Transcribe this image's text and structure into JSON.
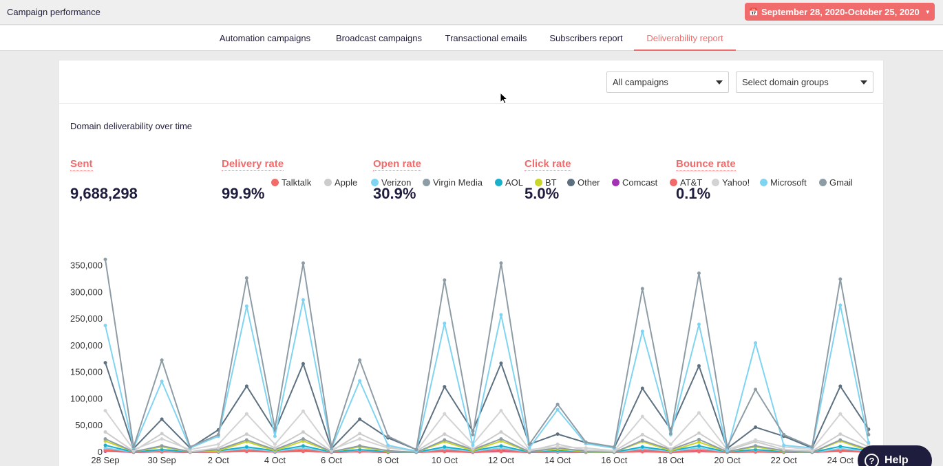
{
  "header": {
    "title": "Campaign performance",
    "date_range": "September 28, 2020-October 25, 2020",
    "calendar_icon": "calendar-icon",
    "dropdown_icon": "caret-down-icon",
    "accent_color": "#f06b6b"
  },
  "tabs": [
    {
      "label": "Automation campaigns",
      "active": false
    },
    {
      "label": "Broadcast campaigns",
      "active": false
    },
    {
      "label": "Transactional emails",
      "active": false
    },
    {
      "label": "Subscribers report",
      "active": false
    },
    {
      "label": "Deliverability report",
      "active": true
    }
  ],
  "filters": {
    "campaigns": "All campaigns",
    "domain_groups": "Select domain groups"
  },
  "section_title": "Domain deliverability over time",
  "stats": [
    {
      "label": "Sent",
      "value": "9,688,298"
    },
    {
      "label": "Delivery rate",
      "value": "99.9%"
    },
    {
      "label": "Open rate",
      "value": "30.9%"
    },
    {
      "label": "Click rate",
      "value": "5.0%"
    },
    {
      "label": "Bounce rate",
      "value": "0.1%"
    }
  ],
  "help": {
    "label": "Help",
    "icon": "question-icon"
  },
  "chart_data": {
    "type": "line",
    "x": [
      "28 Sep",
      "29 Sep",
      "30 Sep",
      "1 Oct",
      "2 Oct",
      "3 Oct",
      "4 Oct",
      "5 Oct",
      "6 Oct",
      "7 Oct",
      "8 Oct",
      "9 Oct",
      "10 Oct",
      "11 Oct",
      "12 Oct",
      "13 Oct",
      "14 Oct",
      "15 Oct",
      "16 Oct",
      "17 Oct",
      "18 Oct",
      "19 Oct",
      "20 Oct",
      "21 Oct",
      "22 Oct",
      "23 Oct",
      "24 Oct",
      "25 Oct"
    ],
    "x_tick_labels": [
      "28 Sep",
      "30 Sep",
      "2 Oct",
      "4 Oct",
      "6 Oct",
      "8 Oct",
      "10 Oct",
      "12 Oct",
      "14 Oct",
      "16 Oct",
      "18 Oct",
      "20 Oct",
      "22 Oct",
      "24 Oct"
    ],
    "y_ticks": [
      "0",
      "50,000",
      "100,000",
      "150,000",
      "200,000",
      "250,000",
      "300,000",
      "350,000"
    ],
    "ylim": [
      0,
      365000
    ],
    "legend_position": "top-right",
    "series": [
      {
        "name": "Talktalk",
        "color": "#f26b6b",
        "values": [
          3000,
          0,
          1000,
          0,
          500,
          1500,
          500,
          1500,
          0,
          1000,
          0,
          0,
          1200,
          0,
          1200,
          0,
          500,
          0,
          0,
          1000,
          0,
          1200,
          0,
          500,
          0,
          0,
          1500,
          500
        ]
      },
      {
        "name": "Apple",
        "color": "#cccccc",
        "values": [
          38000,
          2000,
          35000,
          1000,
          8000,
          34000,
          8000,
          38000,
          2000,
          35000,
          10000,
          2000,
          34000,
          6000,
          38000,
          3000,
          15000,
          4000,
          2000,
          33000,
          6000,
          36000,
          3000,
          20000,
          5000,
          2000,
          34000,
          10000
        ]
      },
      {
        "name": "Verizon",
        "color": "#7fd4f2",
        "values": [
          238000,
          8000,
          133000,
          8000,
          30000,
          274000,
          30000,
          286000,
          8000,
          134000,
          13000,
          2000,
          242000,
          13000,
          258000,
          8000,
          80000,
          16000,
          8000,
          227000,
          33000,
          240000,
          3000,
          205000,
          13000,
          8000,
          276000,
          18000
        ]
      },
      {
        "name": "Virgin Media",
        "color": "#8e9ca5",
        "values": [
          362000,
          10000,
          173000,
          10000,
          33000,
          327000,
          45000,
          355000,
          10000,
          173000,
          30000,
          5000,
          323000,
          33000,
          355000,
          15000,
          90000,
          19000,
          10000,
          307000,
          35000,
          336000,
          10000,
          118000,
          33000,
          10000,
          325000,
          33000
        ]
      },
      {
        "name": "AOL",
        "color": "#1bb0c9",
        "values": [
          13000,
          500,
          5000,
          500,
          3000,
          10000,
          3000,
          12000,
          500,
          5000,
          1000,
          0,
          10000,
          3000,
          12000,
          500,
          3000,
          500,
          0,
          10000,
          3000,
          12000,
          500,
          5000,
          1000,
          0,
          11000,
          3000
        ]
      },
      {
        "name": "BT",
        "color": "#c9d62a",
        "values": [
          21000,
          1000,
          10000,
          1000,
          3000,
          20000,
          3000,
          21000,
          1000,
          10000,
          2000,
          0,
          20000,
          3000,
          21000,
          1000,
          6000,
          1000,
          0,
          20000,
          3000,
          19000,
          1000,
          10000,
          2000,
          0,
          21000,
          3000
        ]
      },
      {
        "name": "Other",
        "color": "#5c7080",
        "values": [
          168000,
          7000,
          62000,
          8000,
          42000,
          124000,
          40000,
          166000,
          7000,
          62000,
          27000,
          5000,
          123000,
          40000,
          167000,
          15000,
          34000,
          18000,
          8000,
          120000,
          43000,
          162000,
          7000,
          47000,
          30000,
          8000,
          124000,
          43000
        ]
      },
      {
        "name": "Comcast",
        "color": "#a333b4",
        "values": [
          2000,
          0,
          1000,
          0,
          500,
          2000,
          500,
          2000,
          0,
          1000,
          0,
          0,
          2000,
          0,
          2000,
          0,
          500,
          0,
          0,
          2000,
          0,
          2000,
          0,
          1000,
          0,
          0,
          2000,
          500
        ]
      },
      {
        "name": "AT&T",
        "color": "#f26b6b",
        "values": [
          5000,
          0,
          2000,
          0,
          1000,
          4000,
          1000,
          5000,
          0,
          2000,
          500,
          0,
          4000,
          1000,
          5000,
          500,
          1500,
          500,
          0,
          4000,
          1000,
          4500,
          0,
          2000,
          500,
          0,
          4500,
          1000
        ]
      },
      {
        "name": "Yahoo!",
        "color": "#d3d3d3",
        "values": [
          78000,
          5000,
          25000,
          5000,
          15000,
          72000,
          15000,
          77000,
          5000,
          25000,
          8000,
          2000,
          72000,
          15000,
          78000,
          5000,
          10000,
          8000,
          3000,
          67000,
          15000,
          74000,
          5000,
          23000,
          10000,
          5000,
          72000,
          15000
        ]
      },
      {
        "name": "Microsoft",
        "color": "#7fd4f2",
        "values": [
          8000,
          500,
          4000,
          500,
          2000,
          7000,
          2000,
          8000,
          500,
          4000,
          1000,
          0,
          7000,
          2000,
          8000,
          500,
          2000,
          500,
          0,
          7000,
          2000,
          8000,
          500,
          4000,
          1000,
          0,
          7000,
          2000
        ]
      },
      {
        "name": "Gmail",
        "color": "#8e9ca5",
        "values": [
          25000,
          1000,
          12000,
          1000,
          5000,
          23000,
          5000,
          25000,
          1000,
          12000,
          3000,
          0,
          23000,
          5000,
          25000,
          1000,
          8000,
          2000,
          0,
          22000,
          5000,
          24000,
          1000,
          12000,
          3000,
          0,
          23000,
          5000
        ]
      }
    ]
  }
}
